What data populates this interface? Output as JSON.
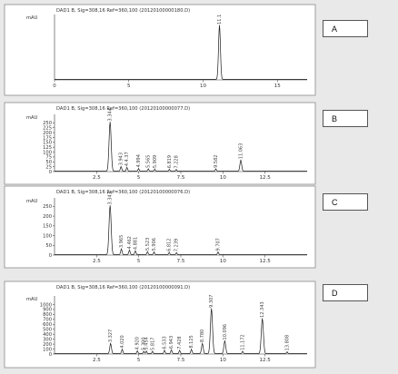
{
  "chart_data": [
    {
      "type": "line",
      "panel_label": "A",
      "title": "DAD1 B, Sig=308,16 Ref=360,100 (20120100000180.D)",
      "ylabel": "mAU",
      "xlim": [
        0,
        17
      ],
      "x_ticks": [
        "0",
        "5",
        "10",
        "15"
      ],
      "y_ticks": [],
      "peaks": [
        {
          "rt": 11.1,
          "height": 1.0,
          "label": "11.1"
        }
      ]
    },
    {
      "type": "line",
      "panel_label": "B",
      "title": "DAD1 B, Sig=308,16 Ref=360,100 (20120100000077.D)",
      "ylabel": "mAU",
      "xlim": [
        0,
        15
      ],
      "ylim": [
        0,
        275
      ],
      "x_ticks": [
        "2.5",
        "5",
        "7.5",
        "10",
        "12.5"
      ],
      "y_ticks": [
        "0",
        "25",
        "50",
        "75",
        "100",
        "125",
        "150",
        "175",
        "200",
        "225",
        "250"
      ],
      "peaks": [
        {
          "rt": 3.3,
          "height": 250,
          "label": "3.344"
        },
        {
          "rt": 3.95,
          "height": 22,
          "label": "3.943"
        },
        {
          "rt": 4.3,
          "height": 18,
          "label": "4.4.37"
        },
        {
          "rt": 4.99,
          "height": 12,
          "label": "4.994"
        },
        {
          "rt": 5.57,
          "height": 10,
          "label": "5.565"
        },
        {
          "rt": 5.95,
          "height": 9,
          "label": "5.909"
        },
        {
          "rt": 6.82,
          "height": 8,
          "label": "6.819"
        },
        {
          "rt": 7.23,
          "height": 7,
          "label": "7.228"
        },
        {
          "rt": 9.58,
          "height": 10,
          "label": "9.582"
        },
        {
          "rt": 11.06,
          "height": 55,
          "label": "11.063"
        }
      ]
    },
    {
      "type": "line",
      "panel_label": "C",
      "title": "DAD1 B, Sig=308,16 Ref=360,100 (20120100000076.D)",
      "ylabel": "mAU",
      "xlim": [
        0,
        15
      ],
      "ylim": [
        0,
        275
      ],
      "x_ticks": [
        "2.5",
        "5",
        "7.5",
        "10",
        "12.5"
      ],
      "y_ticks": [
        "0",
        "50",
        "100",
        "150",
        "200",
        "250"
      ],
      "peaks": [
        {
          "rt": 3.3,
          "height": 250,
          "label": "3.343"
        },
        {
          "rt": 3.97,
          "height": 28,
          "label": "3.965"
        },
        {
          "rt": 4.45,
          "height": 22,
          "label": "4.462"
        },
        {
          "rt": 4.8,
          "height": 18,
          "label": "4.881"
        },
        {
          "rt": 5.52,
          "height": 14,
          "label": "5.523"
        },
        {
          "rt": 5.91,
          "height": 12,
          "label": "5.906"
        },
        {
          "rt": 6.81,
          "height": 10,
          "label": "6.812"
        },
        {
          "rt": 7.24,
          "height": 9,
          "label": "7.239"
        },
        {
          "rt": 9.71,
          "height": 12,
          "label": "9.707"
        }
      ]
    },
    {
      "type": "line",
      "panel_label": "D",
      "title": "DAD1 B, Sig=308,16 Ref=360,100 (20120100000091.D)",
      "ylabel": "mAU",
      "xlim": [
        0,
        15
      ],
      "ylim": [
        0,
        1100
      ],
      "x_ticks": [
        "2.5",
        "5",
        "7.5",
        "10",
        "12.5"
      ],
      "y_ticks": [
        "0",
        "100",
        "200",
        "300",
        "400",
        "500",
        "600",
        "700",
        "800",
        "900",
        "1000"
      ],
      "peaks": [
        {
          "rt": 3.33,
          "height": 200,
          "label": "3.327"
        },
        {
          "rt": 4.02,
          "height": 80,
          "label": "4.020"
        },
        {
          "rt": 4.92,
          "height": 50,
          "label": "4.920"
        },
        {
          "rt": 5.3,
          "height": 40,
          "label": "5.300"
        },
        {
          "rt": 5.45,
          "height": 45,
          "label": "5.454"
        },
        {
          "rt": 5.82,
          "height": 40,
          "label": "5.817"
        },
        {
          "rt": 6.53,
          "height": 60,
          "label": "6.533"
        },
        {
          "rt": 6.94,
          "height": 70,
          "label": "6.943"
        },
        {
          "rt": 7.43,
          "height": 60,
          "label": "7.428"
        },
        {
          "rt": 8.13,
          "height": 80,
          "label": "8.125"
        },
        {
          "rt": 8.78,
          "height": 200,
          "label": "8.780"
        },
        {
          "rt": 9.32,
          "height": 900,
          "label": "9.307"
        },
        {
          "rt": 10.11,
          "height": 250,
          "label": "10.096"
        },
        {
          "rt": 11.17,
          "height": 40,
          "label": "11.172"
        },
        {
          "rt": 12.34,
          "height": 700,
          "label": "12.343"
        },
        {
          "rt": 13.81,
          "height": 30,
          "label": "13.808"
        }
      ]
    }
  ]
}
